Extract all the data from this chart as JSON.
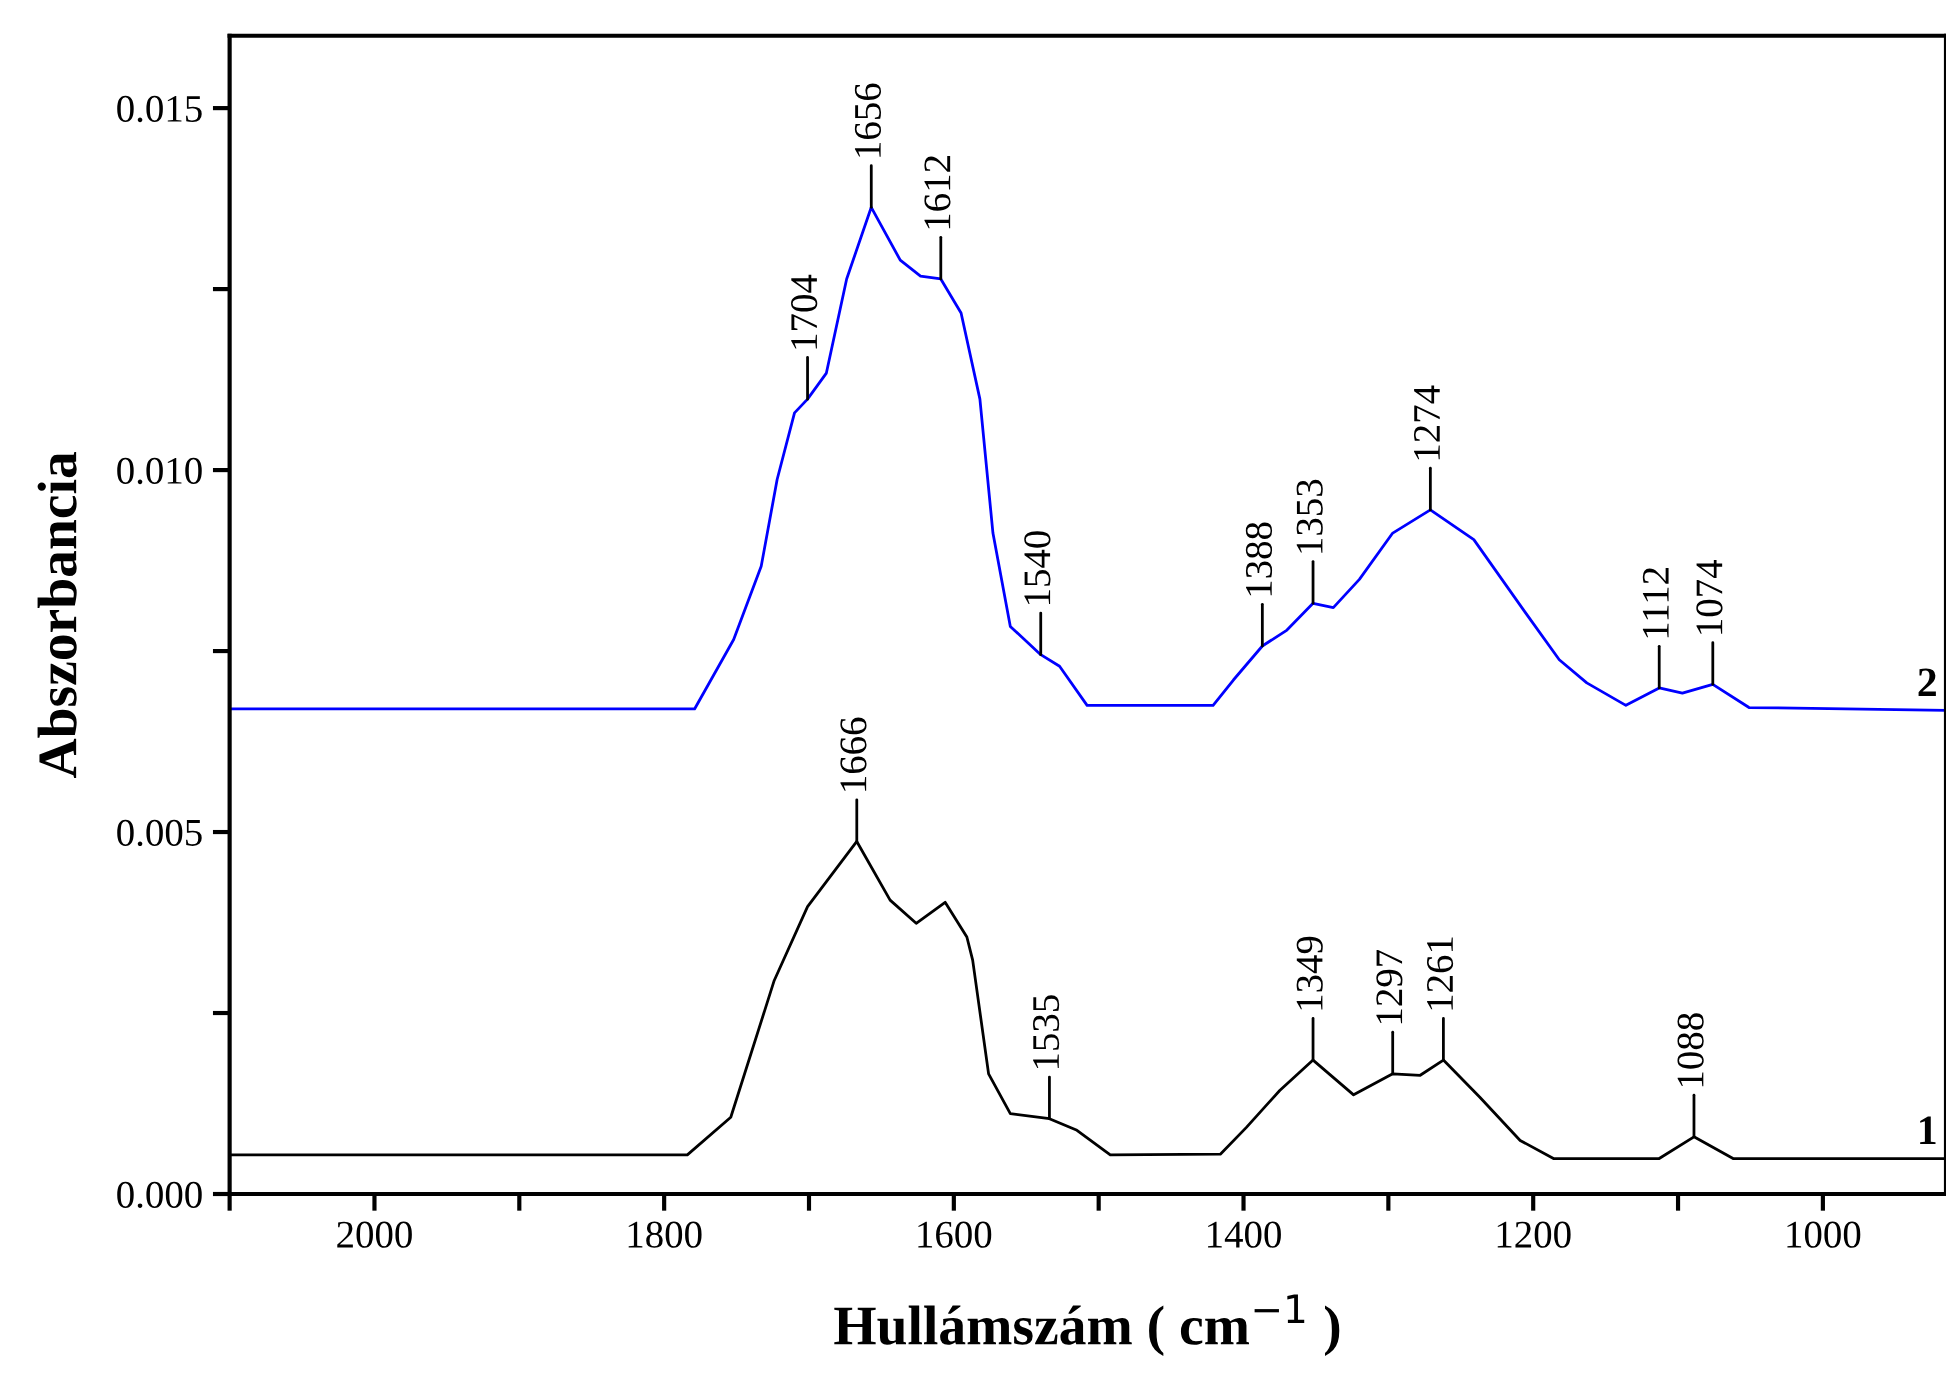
{
  "chart_data": {
    "type": "line",
    "xlabel": "Hullámszám ( cm$^{−1}$ )",
    "ylabel": "Abszorbancia",
    "xlim": [
      2100,
      915
    ],
    "ylim": [
      0,
      0.016
    ],
    "xticks": [
      {
        "value": 2100,
        "label": null
      },
      2000,
      {
        "value": 1900,
        "label": null
      },
      1800,
      {
        "value": 1700,
        "label": null
      },
      1600,
      {
        "value": 1500,
        "label": null
      },
      1400,
      {
        "value": 1300,
        "label": null
      },
      1200,
      {
        "value": 1100,
        "label": null
      },
      1000
    ],
    "yticks": [
      {
        "value": 0,
        "label": "0.000"
      },
      {
        "value": 0.0025,
        "label": null
      },
      {
        "value": 0.005,
        "label": "0.005"
      },
      {
        "value": 0.0075,
        "label": null
      },
      {
        "value": 0.01,
        "label": "0.010"
      },
      {
        "value": 0.0125,
        "label": null
      },
      {
        "value": 0.015,
        "label": "0.015"
      }
    ],
    "grid": false,
    "legend": false,
    "line_style": "solid",
    "marker": "none",
    "series": [
      {
        "name": "2",
        "color": "#0000ff",
        "x": [
          2100,
          1779,
          1752,
          1733,
          1722,
          1710,
          1701,
          1688,
          1674,
          1657,
          1637,
          1623,
          1609,
          1595,
          1582,
          1573,
          1561,
          1540,
          1527,
          1508,
          1421,
          1407,
          1387,
          1370,
          1352,
          1338,
          1320,
          1297,
          1271,
          1241,
          1205,
          1182,
          1163,
          1136,
          1113,
          1097,
          1076,
          1051,
          915
        ],
        "values": [
          0.0067,
          0.0067,
          0.00766,
          0.00867,
          0.00987,
          0.01079,
          0.01098,
          0.01134,
          0.01264,
          0.01363,
          0.0129,
          0.01268,
          0.01264,
          0.01217,
          0.01098,
          0.00913,
          0.00784,
          0.00745,
          0.00729,
          0.00675,
          0.00675,
          0.0071,
          0.00757,
          0.00779,
          0.00816,
          0.0081,
          0.00849,
          0.00913,
          0.00945,
          0.00904,
          0.00802,
          0.00738,
          0.00706,
          0.00675,
          0.00699,
          0.00692,
          0.00704,
          0.00672,
          0.00668
        ]
      },
      {
        "name": "1",
        "color": "#000000",
        "x": [
          2100,
          1784,
          1754,
          1724,
          1701,
          1667,
          1644,
          1626,
          1606,
          1591,
          1587,
          1576,
          1561,
          1534,
          1515,
          1492,
          1416,
          1398,
          1375,
          1352,
          1324,
          1297,
          1278,
          1262,
          1237,
          1209,
          1186,
          1113,
          1089,
          1062,
          915
        ],
        "values": [
          0.00054,
          0.00054,
          0.00106,
          0.00295,
          0.00397,
          0.00487,
          0.00406,
          0.00374,
          0.00403,
          0.00355,
          0.00323,
          0.00166,
          0.00111,
          0.00104,
          0.00088,
          0.00054,
          0.00055,
          0.00092,
          0.00143,
          0.00185,
          0.00137,
          0.00166,
          0.00164,
          0.00185,
          0.00134,
          0.00074,
          0.00049,
          0.00049,
          0.00079,
          0.00049,
          0.00049
        ]
      }
    ],
    "annotations": [
      {
        "text": "1704",
        "x": 1701,
        "y": 0.01098
      },
      {
        "text": "1656",
        "x": 1657,
        "y": 0.01363
      },
      {
        "text": "1612",
        "x": 1609,
        "y": 0.01264
      },
      {
        "text": "1540",
        "x": 1540,
        "y": 0.00745
      },
      {
        "text": "1388",
        "x": 1387,
        "y": 0.00757
      },
      {
        "text": "1353",
        "x": 1352,
        "y": 0.00816
      },
      {
        "text": "1274",
        "x": 1271,
        "y": 0.00945
      },
      {
        "text": "1112",
        "x": 1113,
        "y": 0.00699
      },
      {
        "text": "1074",
        "x": 1076,
        "y": 0.00704
      },
      {
        "text": "1666",
        "x": 1667,
        "y": 0.00487
      },
      {
        "text": "1535",
        "x": 1534,
        "y": 0.00104
      },
      {
        "text": "1349",
        "x": 1352,
        "y": 0.00185
      },
      {
        "text": "1297",
        "x": 1297,
        "y": 0.00166
      },
      {
        "text": "1261",
        "x": 1262,
        "y": 0.00185
      },
      {
        "text": "1088",
        "x": 1089,
        "y": 0.00079
      }
    ]
  }
}
